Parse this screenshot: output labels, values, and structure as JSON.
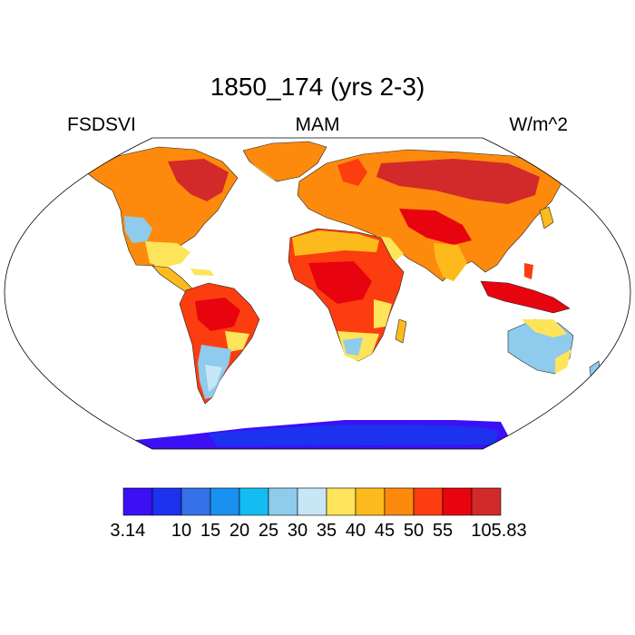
{
  "title": "1850_174 (yrs 2-3)",
  "left_label": "FSDSVI",
  "center_label": "MAM",
  "right_label": "W/m^2",
  "colorbar": {
    "colors": [
      "#3b10f5",
      "#1c32ee",
      "#3470e8",
      "#1a90f0",
      "#14bcf4",
      "#8ecbec",
      "#c7e6f6",
      "#fde45a",
      "#fdba1c",
      "#fd8a0c",
      "#fc3d0f",
      "#e8040e",
      "#d22a2a"
    ],
    "labels": [
      "3.14",
      "10",
      "15",
      "20",
      "25",
      "30",
      "35",
      "40",
      "45",
      "50",
      "55",
      "105.83"
    ]
  },
  "colors": {
    "antarctica": "#1c32ee",
    "antarctica_edge": "#3b10f5",
    "high_lat": "#d22a2a",
    "mid_lat": "#fd8a0c",
    "warm": "#fdba1c",
    "yellow": "#fde45a",
    "tropics": "#fc3d0f",
    "deep": "#e8040e",
    "light_blue": "#8ecbec",
    "pale_blue": "#c7e6f6"
  }
}
